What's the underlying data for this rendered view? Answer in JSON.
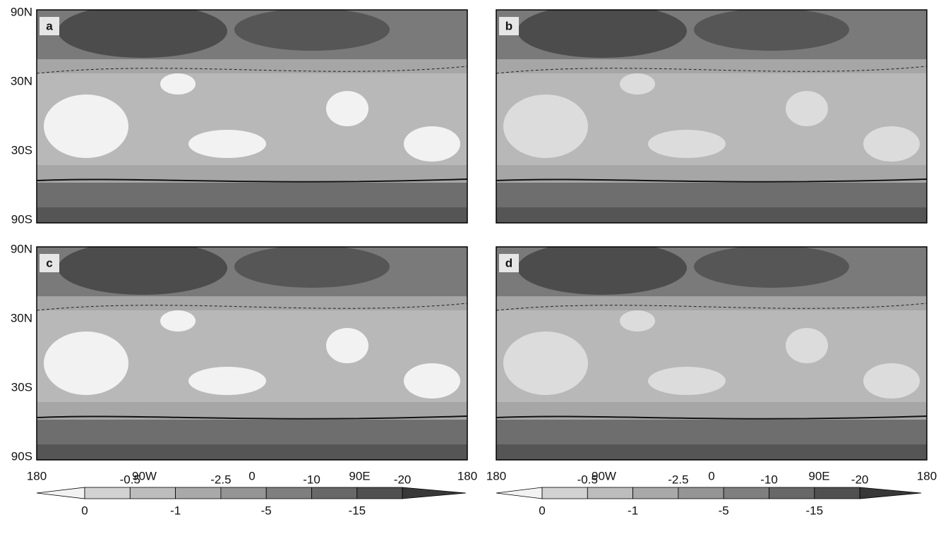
{
  "panels": [
    {
      "label": "a"
    },
    {
      "label": "b"
    },
    {
      "label": "c"
    },
    {
      "label": "d"
    }
  ],
  "y_axis_labels": [
    "90N",
    "30N",
    "30S",
    "90S"
  ],
  "x_axis_labels": [
    "180",
    "90W",
    "0",
    "90E",
    "180"
  ],
  "colorbar": {
    "levels": [
      0,
      -0.5,
      -1,
      -2.5,
      -5,
      -10,
      -15,
      -20
    ],
    "colors": [
      "#f2f2f2",
      "#d2d2d2",
      "#bdbdbd",
      "#a9a9a9",
      "#959595",
      "#7f7f7f",
      "#686868",
      "#505050",
      "#383838"
    ]
  }
}
